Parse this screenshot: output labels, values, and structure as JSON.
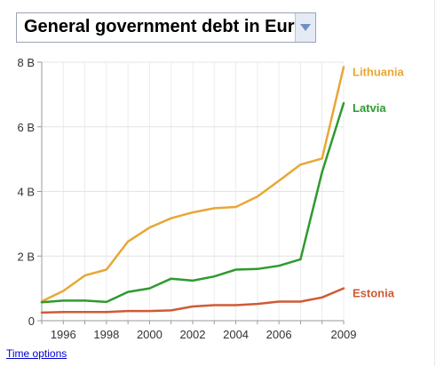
{
  "metric_selector": {
    "label": "General government debt in Euros",
    "icon": "chevron-down-icon"
  },
  "time_options_label": "Time options",
  "chart_data": {
    "type": "line",
    "title": "",
    "xlabel": "",
    "ylabel": "",
    "x": [
      1995,
      1996,
      1997,
      1998,
      1999,
      2000,
      2001,
      2002,
      2003,
      2004,
      2005,
      2006,
      2007,
      2008,
      2009
    ],
    "xlim": [
      1995,
      2009
    ],
    "ylim": [
      0,
      8
    ],
    "y_unit": "billion EUR",
    "x_ticks": [
      {
        "value": 1996,
        "label": "1996"
      },
      {
        "value": 1998,
        "label": "1998"
      },
      {
        "value": 2000,
        "label": "2000"
      },
      {
        "value": 2002,
        "label": "2002"
      },
      {
        "value": 2004,
        "label": "2004"
      },
      {
        "value": 2006,
        "label": "2006"
      },
      {
        "value": 2009,
        "label": "2009"
      }
    ],
    "y_ticks": [
      {
        "value": 0,
        "label": "0"
      },
      {
        "value": 2,
        "label": "2 B"
      },
      {
        "value": 4,
        "label": "4 B"
      },
      {
        "value": 6,
        "label": "6 B"
      },
      {
        "value": 8,
        "label": "8 B"
      }
    ],
    "grid": true,
    "legend": "inline-right",
    "series": [
      {
        "name": "Lithuania",
        "color": "#e8a735",
        "values": [
          0.6,
          0.92,
          1.4,
          1.58,
          2.45,
          2.88,
          3.17,
          3.35,
          3.48,
          3.52,
          3.84,
          4.33,
          4.83,
          5.02,
          7.85
        ]
      },
      {
        "name": "Latvia",
        "color": "#2e9a2e",
        "values": [
          0.57,
          0.62,
          0.62,
          0.58,
          0.89,
          1.0,
          1.3,
          1.24,
          1.37,
          1.58,
          1.6,
          1.7,
          1.9,
          4.6,
          6.73
        ]
      },
      {
        "name": "Estonia",
        "color": "#d05a35",
        "values": [
          0.25,
          0.27,
          0.27,
          0.27,
          0.3,
          0.3,
          0.32,
          0.44,
          0.48,
          0.48,
          0.52,
          0.59,
          0.59,
          0.72,
          1.0
        ]
      }
    ]
  }
}
